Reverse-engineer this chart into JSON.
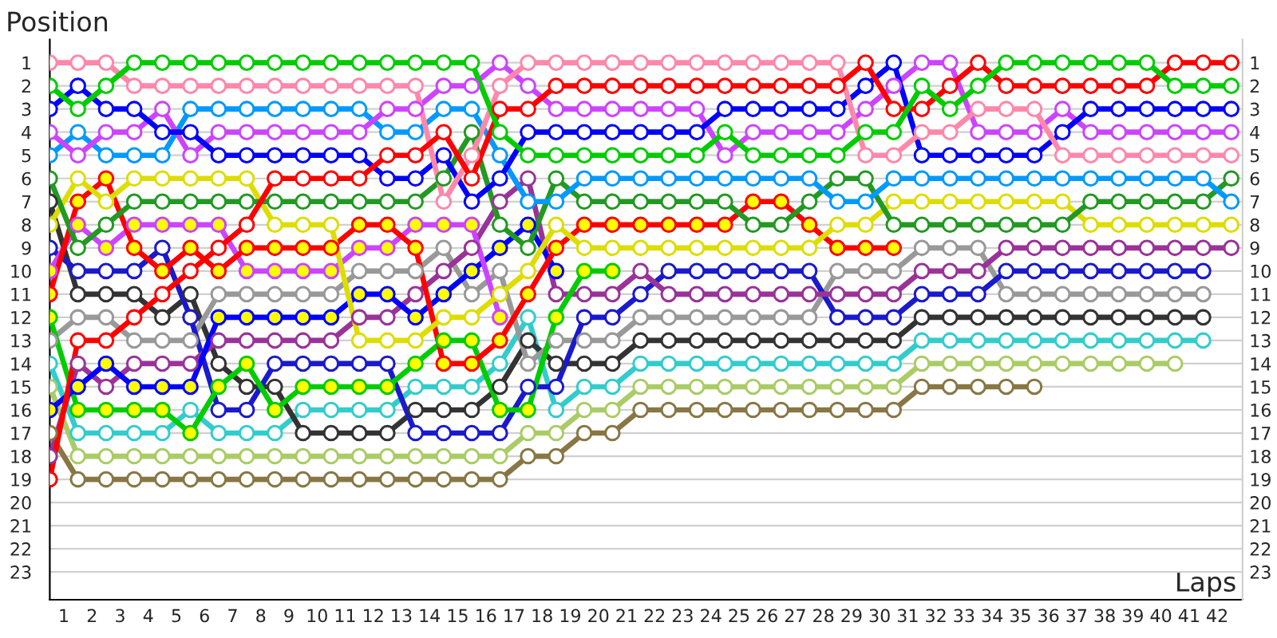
{
  "chart_data": {
    "type": "line",
    "xlabel": "Laps",
    "ylabel": "Position",
    "x": [
      0,
      1,
      2,
      3,
      4,
      5,
      6,
      7,
      8,
      9,
      10,
      11,
      12,
      13,
      14,
      15,
      16,
      17,
      18,
      19,
      20,
      21,
      22,
      23,
      24,
      25,
      26,
      27,
      28,
      29,
      30,
      31,
      32,
      33,
      34,
      35,
      36,
      37,
      38,
      39,
      40,
      41,
      42
    ],
    "xlim": [
      0,
      42.4
    ],
    "xticks": [
      {
        "value": 0.5,
        "label": "1"
      },
      {
        "value": 1.5,
        "label": "2"
      },
      {
        "value": 2.5,
        "label": "3"
      },
      {
        "value": 3.5,
        "label": "4"
      },
      {
        "value": 4.5,
        "label": "5"
      },
      {
        "value": 5.5,
        "label": "6"
      },
      {
        "value": 6.5,
        "label": "7"
      },
      {
        "value": 7.5,
        "label": "8"
      },
      {
        "value": 8.5,
        "label": "9"
      },
      {
        "value": 9.5,
        "label": "10"
      },
      {
        "value": 10.5,
        "label": "11"
      },
      {
        "value": 11.5,
        "label": "12"
      },
      {
        "value": 12.5,
        "label": "13"
      },
      {
        "value": 13.5,
        "label": "14"
      },
      {
        "value": 14.5,
        "label": "15"
      },
      {
        "value": 15.5,
        "label": "16"
      },
      {
        "value": 16.5,
        "label": "17"
      },
      {
        "value": 17.5,
        "label": "18"
      },
      {
        "value": 18.5,
        "label": "19"
      },
      {
        "value": 19.5,
        "label": "20"
      },
      {
        "value": 20.5,
        "label": "21"
      },
      {
        "value": 21.5,
        "label": "22"
      },
      {
        "value": 22.5,
        "label": "23"
      },
      {
        "value": 23.5,
        "label": "24"
      },
      {
        "value": 24.5,
        "label": "25"
      },
      {
        "value": 25.5,
        "label": "26"
      },
      {
        "value": 26.5,
        "label": "27"
      },
      {
        "value": 27.5,
        "label": "28"
      },
      {
        "value": 28.5,
        "label": "29"
      },
      {
        "value": 29.5,
        "label": "30"
      },
      {
        "value": 30.5,
        "label": "31"
      },
      {
        "value": 31.5,
        "label": "32"
      },
      {
        "value": 32.5,
        "label": "33"
      },
      {
        "value": 33.5,
        "label": "34"
      },
      {
        "value": 34.5,
        "label": "35"
      },
      {
        "value": 35.5,
        "label": "36"
      },
      {
        "value": 36.5,
        "label": "37"
      },
      {
        "value": 37.5,
        "label": "38"
      },
      {
        "value": 38.5,
        "label": "39"
      },
      {
        "value": 39.5,
        "label": "40"
      },
      {
        "value": 40.5,
        "label": "41"
      },
      {
        "value": 41.5,
        "label": "42"
      }
    ],
    "ylim": [
      24.2,
      0
    ],
    "yticks": [
      1,
      2,
      3,
      4,
      5,
      6,
      7,
      8,
      9,
      10,
      11,
      12,
      13,
      14,
      15,
      16,
      17,
      18,
      19,
      20,
      21,
      22,
      23
    ],
    "y2lim": [
      24.2,
      0
    ],
    "y2ticks": [
      1,
      2,
      3,
      4,
      5,
      6,
      7,
      8,
      9,
      10,
      11,
      12,
      13,
      14,
      15,
      16,
      17,
      18,
      19,
      20,
      21,
      22,
      23
    ],
    "grid": true,
    "legend": false,
    "marker": "circle",
    "line_style": "solid",
    "series": [
      {
        "color": "#aacc66",
        "values": [
          15,
          18,
          18,
          18,
          18,
          18,
          18,
          18,
          18,
          18,
          18,
          18,
          18,
          18,
          18,
          18,
          18,
          17,
          17,
          16,
          16,
          15,
          15,
          15,
          15,
          15,
          15,
          15,
          15,
          15,
          15,
          14,
          14,
          14,
          14,
          14,
          14,
          14,
          14,
          14,
          14,
          null,
          null
        ]
      },
      {
        "color": "#887744",
        "values": [
          17,
          19,
          19,
          19,
          19,
          19,
          19,
          19,
          19,
          19,
          19,
          19,
          19,
          19,
          19,
          19,
          19,
          18,
          18,
          17,
          17,
          16,
          16,
          16,
          16,
          16,
          16,
          16,
          16,
          16,
          16,
          15,
          15,
          15,
          15,
          15,
          null,
          null,
          null,
          null,
          null,
          null,
          null
        ]
      },
      {
        "color": "#33cccc",
        "values": [
          14,
          17,
          17,
          17,
          17,
          16,
          17,
          17,
          17,
          16,
          16,
          16,
          16,
          15,
          15,
          15,
          14,
          12,
          16,
          15,
          15,
          14,
          14,
          14,
          14,
          14,
          14,
          14,
          14,
          14,
          14,
          13,
          13,
          13,
          13,
          13,
          13,
          13,
          13,
          13,
          13,
          13,
          null
        ]
      },
      {
        "color": "#333333",
        "values": [
          7,
          11,
          11,
          11,
          12,
          11,
          14,
          15,
          15,
          17,
          17,
          17,
          17,
          16,
          16,
          16,
          15,
          13,
          14,
          14,
          14,
          13,
          13,
          13,
          13,
          13,
          13,
          13,
          13,
          13,
          13,
          12,
          12,
          12,
          12,
          12,
          12,
          12,
          12,
          12,
          12,
          12,
          null
        ]
      },
      {
        "color": "#999999",
        "values": [
          13,
          12,
          12,
          13,
          13,
          13,
          11,
          11,
          11,
          11,
          11,
          10,
          10,
          10,
          9,
          11,
          10,
          14,
          13,
          13,
          13,
          12,
          12,
          12,
          12,
          12,
          12,
          12,
          10,
          10,
          10,
          9,
          9,
          9,
          11,
          11,
          11,
          11,
          11,
          11,
          11,
          11,
          null
        ]
      },
      {
        "color": "#1a1acc",
        "values": [
          9,
          10,
          10,
          10,
          9,
          12,
          16,
          16,
          14,
          14,
          14,
          14,
          14,
          17,
          17,
          17,
          17,
          15,
          15,
          12,
          12,
          11,
          10,
          10,
          10,
          10,
          10,
          10,
          12,
          12,
          12,
          11,
          11,
          11,
          10,
          10,
          10,
          10,
          10,
          10,
          10,
          10,
          null
        ]
      },
      {
        "color": "#993399",
        "values": [
          18,
          14,
          15,
          14,
          14,
          14,
          13,
          13,
          13,
          13,
          13,
          12,
          12,
          11,
          10,
          9,
          7,
          6,
          11,
          11,
          11,
          10,
          11,
          11,
          11,
          11,
          11,
          11,
          11,
          11,
          11,
          10,
          10,
          10,
          9,
          9,
          9,
          9,
          9,
          9,
          9,
          9,
          9
        ]
      },
      {
        "color": "#00cc00",
        "colors": [
          "#ffff00",
          "#ffff00",
          "#ffff00",
          "#ffff00",
          "#ffff00",
          "#ffff00",
          "#ffff00",
          "#ffff00",
          "#ffff00",
          "#ffff00",
          "#ffff00",
          "#ffff00",
          "#ffff00",
          "#ffff00",
          "#ffff00",
          "#ffff00",
          "#ffff00",
          "#ffff00",
          "#ffff00",
          "#ffff00",
          "#ffff00",
          "#ffff00",
          "#ffff00",
          "#ffff00",
          "#ffff00",
          "#ffff00",
          "#ffff00",
          "#ffff00",
          "#ffff00",
          "#ffff00",
          "#ffff00",
          "#ffff00",
          "#ffff00",
          "#ffff00",
          "#ffff00",
          "#ffff00",
          "#ffff00",
          "#ffff00",
          "#ffff00",
          "#ffff00",
          "#ffff00",
          "#ffff00",
          "#ffff00"
        ],
        "values": [
          12,
          16,
          16,
          16,
          16,
          17,
          15,
          14,
          16,
          15,
          15,
          15,
          15,
          14,
          13,
          13,
          16,
          16,
          12,
          10,
          10,
          null,
          null,
          null,
          null,
          null,
          null,
          null,
          null,
          null,
          null,
          null,
          null,
          null,
          null,
          null,
          null,
          null,
          null,
          null,
          null,
          null,
          null
        ]
      },
      {
        "color": "#0000ff",
        "colors": [
          "#ffff00",
          "#ffff00",
          "#ffff00",
          "#ffff00",
          "#ffff00",
          "#ffff00",
          "#ffff00",
          "#ffff00",
          "#ffff00",
          "#ffff00",
          "#ffff00",
          "#ffff00",
          "#ffff00",
          "#ffff00",
          "#ffff00",
          "#ffff00",
          "#ffff00",
          "#ffff00",
          "#ffff00",
          "#ffff00",
          "#ffff00",
          "#ffff00",
          "#ffff00",
          "#ffff00",
          "#ffff00",
          "#ffff00",
          "#ffff00",
          "#ffff00",
          "#ffff00",
          "#ffff00",
          "#ffff00",
          "#ffff00",
          "#ffff00",
          "#ffff00",
          "#ffff00",
          "#ffff00",
          "#ffff00",
          "#ffff00",
          "#ffff00",
          "#ffff00",
          "#ffff00",
          "#ffff00",
          "#ffff00"
        ],
        "values": [
          16,
          15,
          14,
          15,
          15,
          15,
          12,
          12,
          12,
          12,
          12,
          11,
          11,
          12,
          11,
          10,
          9,
          8,
          10,
          null,
          null,
          null,
          null,
          null,
          null,
          null,
          null,
          null,
          null,
          null,
          null,
          null,
          null,
          null,
          null,
          null,
          null,
          null,
          null,
          null,
          null,
          null,
          null
        ]
      },
      {
        "color": "#cc44ff",
        "colors": [
          "#ffff00",
          "#ffff00",
          "#ffff00",
          "#ffff00",
          "#ffff00",
          "#ffff00",
          "#ffff00",
          "#ffff00",
          "#ffff00",
          "#ffff00",
          "#ffff00",
          "#ffff00",
          "#ffff00",
          "#ffff00",
          "#ffff00",
          "#ffff00",
          "#ffff00",
          "#ffff00",
          "#ffff00",
          "#ffff00",
          "#ffff00",
          "#ffff00",
          "#ffff00",
          "#ffff00",
          "#ffff00",
          "#ffff00",
          "#ffff00",
          "#ffff00",
          "#ffff00",
          "#ffff00",
          "#ffff00",
          "#ffff00",
          "#ffff00",
          "#ffff00",
          "#ffff00",
          "#ffff00",
          "#ffff00",
          "#ffff00",
          "#ffff00",
          "#ffff00",
          "#ffff00",
          "#ffff00",
          "#ffff00"
        ],
        "values": [
          10,
          8,
          9,
          8,
          8,
          8,
          8,
          10,
          10,
          10,
          10,
          9,
          9,
          8,
          8,
          8,
          12,
          null,
          null,
          null,
          null,
          null,
          null,
          null,
          null,
          null,
          null,
          null,
          null,
          null,
          null,
          null,
          null,
          null,
          null,
          null,
          null,
          null,
          null,
          null,
          null,
          null,
          null
        ]
      },
      {
        "color": "#ff0000",
        "colors": [
          "#ffff00",
          "#ffff00",
          "#ffff00",
          "#ffff00",
          "#ffff00",
          "#ffff00",
          "#ffff00",
          "#ffff00",
          "#ffff00",
          "#ffff00",
          "#ffff00",
          "#ffff00",
          "#ffff00",
          "#ffff00",
          "#ffff00",
          "#ffff00",
          "#ffff00",
          "#ffff00",
          "#ffff00",
          "#ffff00",
          "#ffff00",
          "#ffff00",
          "#ffff00",
          "#ffff00",
          "#ffff00",
          "#ffff00",
          "#ffff00",
          "#ffff00",
          "#ffff00",
          "#ffff00",
          "#ffff00",
          "#ffff00",
          "#ffff00",
          "#ffff00",
          "#ffff00",
          "#ffff00",
          "#ffff00",
          "#ffff00",
          "#ffff00",
          "#ffff00",
          "#ffff00",
          "#ffff00",
          "#ffff00"
        ],
        "values": [
          11,
          7,
          6,
          9,
          10,
          9,
          10,
          9,
          9,
          9,
          9,
          8,
          8,
          9,
          14,
          14,
          13,
          11,
          9,
          8,
          8,
          8,
          8,
          8,
          8,
          7,
          7,
          8,
          9,
          9,
          9,
          null,
          null,
          null,
          null,
          null,
          null,
          null,
          null,
          null,
          null,
          null,
          null
        ]
      },
      {
        "color": "#dddd00",
        "values": [
          8,
          6,
          7,
          6,
          6,
          6,
          6,
          6,
          8,
          8,
          8,
          13,
          13,
          13,
          12,
          12,
          11,
          10,
          8,
          9,
          9,
          9,
          9,
          9,
          9,
          9,
          9,
          9,
          8,
          8,
          7,
          7,
          7,
          7,
          7,
          7,
          7,
          8,
          8,
          8,
          8,
          8,
          8
        ]
      },
      {
        "color": "#229922",
        "values": [
          6,
          9,
          8,
          7,
          7,
          7,
          7,
          7,
          7,
          7,
          7,
          7,
          7,
          7,
          6,
          4,
          8,
          9,
          6,
          7,
          7,
          7,
          7,
          7,
          7,
          8,
          8,
          7,
          6,
          6,
          8,
          8,
          8,
          8,
          8,
          8,
          8,
          7,
          7,
          7,
          7,
          7,
          6
        ]
      },
      {
        "color": "#0099ff",
        "values": [
          5,
          4,
          5,
          5,
          5,
          3,
          3,
          3,
          3,
          3,
          3,
          3,
          4,
          4,
          3,
          3,
          5,
          7,
          7,
          6,
          6,
          6,
          6,
          6,
          6,
          6,
          6,
          6,
          7,
          7,
          6,
          6,
          6,
          6,
          6,
          6,
          6,
          6,
          6,
          6,
          6,
          6,
          7
        ]
      },
      {
        "color": "#cc44ff",
        "values": [
          4,
          5,
          4,
          4,
          3,
          5,
          4,
          4,
          4,
          4,
          4,
          4,
          3,
          3,
          2,
          2,
          1,
          2,
          3,
          3,
          3,
          3,
          3,
          3,
          5,
          4,
          4,
          4,
          4,
          3,
          2,
          1,
          1,
          4,
          4,
          4,
          3,
          4,
          4,
          4,
          4,
          4,
          4
        ]
      },
      {
        "color": "#0000ff",
        "values": [
          3,
          2,
          3,
          3,
          4,
          4,
          5,
          5,
          5,
          5,
          5,
          5,
          6,
          6,
          5,
          7,
          6,
          4,
          4,
          4,
          4,
          4,
          4,
          4,
          3,
          3,
          3,
          3,
          3,
          2,
          1,
          5,
          5,
          5,
          5,
          5,
          4,
          3,
          3,
          3,
          3,
          3,
          3
        ]
      },
      {
        "color": "#ff88aa",
        "values": [
          1,
          1,
          1,
          2,
          2,
          2,
          2,
          2,
          2,
          2,
          2,
          2,
          2,
          2,
          7,
          5,
          2,
          1,
          1,
          1,
          1,
          1,
          1,
          1,
          1,
          1,
          1,
          1,
          1,
          5,
          5,
          4,
          4,
          3,
          3,
          3,
          5,
          5,
          5,
          5,
          5,
          5,
          5
        ]
      },
      {
        "color": "#ff0000",
        "values": [
          19,
          13,
          13,
          12,
          11,
          10,
          9,
          8,
          6,
          6,
          6,
          6,
          5,
          5,
          4,
          6,
          3,
          3,
          2,
          2,
          2,
          2,
          2,
          2,
          2,
          2,
          2,
          2,
          2,
          1,
          3,
          3,
          2,
          1,
          2,
          2,
          2,
          2,
          2,
          2,
          1,
          1,
          1
        ]
      },
      {
        "color": "#00cc00",
        "values": [
          2,
          3,
          2,
          1,
          1,
          1,
          1,
          1,
          1,
          1,
          1,
          1,
          1,
          1,
          1,
          1,
          4,
          5,
          5,
          5,
          5,
          5,
          5,
          5,
          4,
          5,
          5,
          5,
          5,
          4,
          4,
          2,
          3,
          2,
          1,
          1,
          1,
          1,
          1,
          1,
          2,
          2,
          2
        ]
      }
    ]
  }
}
